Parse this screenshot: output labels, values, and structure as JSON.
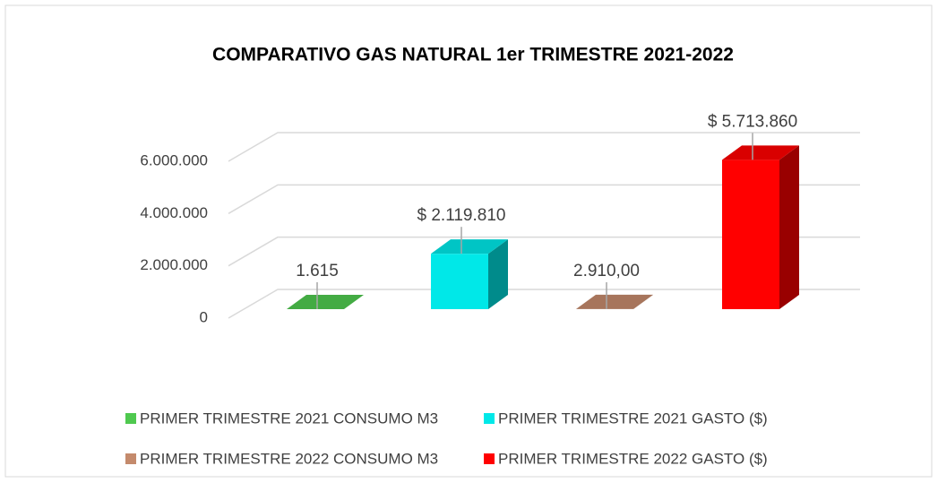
{
  "chart_data": {
    "type": "bar3d",
    "title": "COMPARATIVO GAS NATURAL  1er TRIMESTRE 2021-2022",
    "series": [
      {
        "name": "PRIMER TRIMESTRE 2021 CONSUMO M3",
        "color": "#4fc94f",
        "values": [
          1615
        ],
        "value_labels": [
          "1.615"
        ]
      },
      {
        "name": "PRIMER TRIMESTRE 2021 GASTO ($)",
        "color": "#00e8e8",
        "values": [
          2119810
        ],
        "value_labels": [
          "$ 2.119.810"
        ]
      },
      {
        "name": "PRIMER TRIMESTRE 2022 CONSUMO M3",
        "color": "#c48a6c",
        "values": [
          2910
        ],
        "value_labels": [
          "2.910,00"
        ]
      },
      {
        "name": "PRIMER TRIMESTRE 2022 GASTO ($)",
        "color": "#ff0000",
        "values": [
          5713860
        ],
        "value_labels": [
          "$ 5.713.860"
        ]
      }
    ],
    "ylim": [
      0,
      6000000
    ],
    "yticks": [
      0,
      {
        "value": 2000000,
        "label": "2.000.000"
      },
      {
        "value": 4000000,
        "label": "4.000.000"
      },
      {
        "value": 6000000,
        "label": "6.000.000"
      }
    ],
    "grid": true
  }
}
